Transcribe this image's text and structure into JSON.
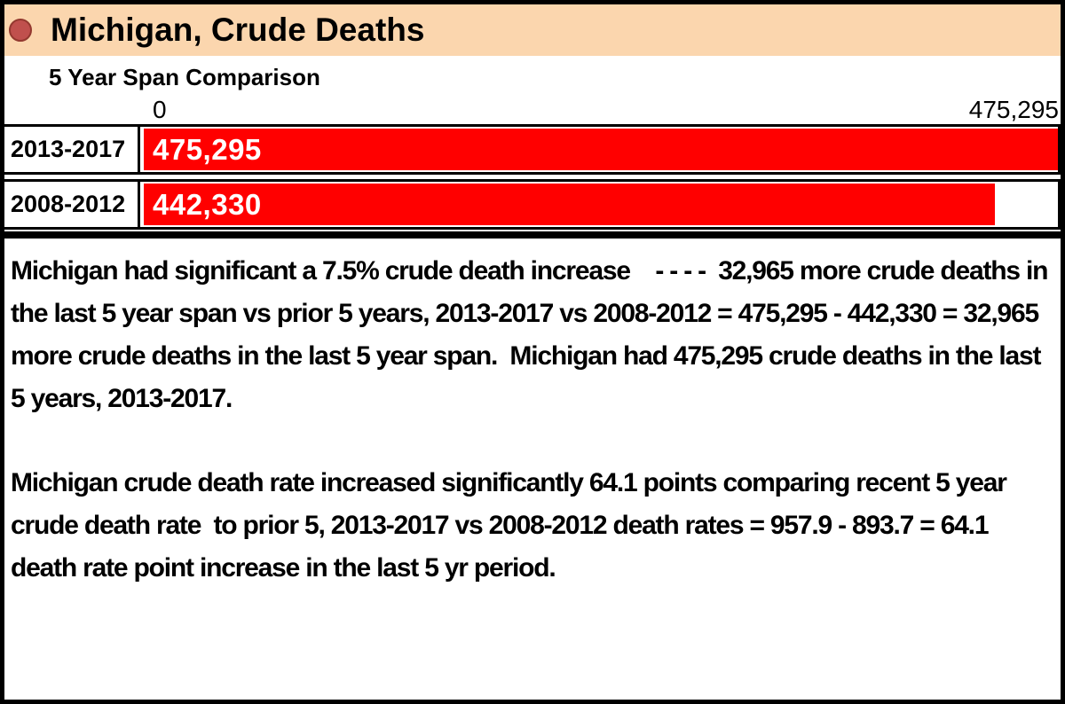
{
  "page": {
    "title": "Michigan, Crude Deaths",
    "subtitle": "5 Year Span Comparison"
  },
  "chart_data": {
    "type": "bar",
    "orientation": "horizontal",
    "title": "Michigan, Crude Deaths",
    "subtitle": "5 Year Span Comparison",
    "categories": [
      "2013-2017",
      "2008-2012"
    ],
    "values": [
      475295,
      442330
    ],
    "value_labels": [
      "475,295",
      "442,330"
    ],
    "xlim": [
      0,
      475295
    ],
    "axis_ticks": {
      "min": "0",
      "max": "475,295"
    },
    "bar_color": "#ff0000",
    "value_label_color": "#ffffff",
    "grid": false,
    "legend": "none"
  },
  "colors": {
    "header_bg": "#fbd6ae",
    "bullet_fill": "#c0504d",
    "bullet_border": "#93382f",
    "bar": "#ff0000",
    "frame": "#000000"
  },
  "summary": {
    "paragraph1": "Michigan had significant a 7.5% crude death increase    - - - -  32,965 more crude deaths in the last 5 year span vs prior 5 years, 2013-2017 vs 2008-2012 = 475,295 - 442,330 = 32,965 more crude deaths in the last 5 year span.  Michigan had 475,295 crude deaths in the last 5 years, 2013-2017.",
    "paragraph2": "Michigan crude death rate increased significantly 64.1 points comparing recent 5 year crude death rate  to prior 5, 2013-2017 vs 2008-2012 death rates = 957.9 - 893.7 = 64.1 death rate point increase in the last 5 yr period."
  }
}
